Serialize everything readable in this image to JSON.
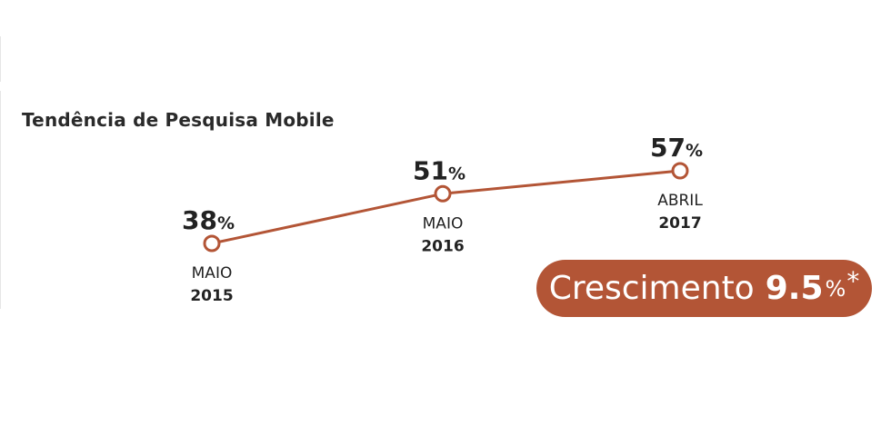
{
  "chart_data": {
    "type": "line",
    "title": "Tendência de Pesquisa Mobile",
    "unit_suffix": "%",
    "line_color": "#b35536",
    "points": [
      {
        "month": "MAIO",
        "year": "2015",
        "value": 38
      },
      {
        "month": "MAIO",
        "year": "2016",
        "value": 51
      },
      {
        "month": "ABRIL",
        "year": "2017",
        "value": 57
      }
    ]
  },
  "badge": {
    "label": "Crescimento",
    "value": "9.5",
    "unit": "%",
    "footnote_mark": "*",
    "color": "#b35536"
  }
}
